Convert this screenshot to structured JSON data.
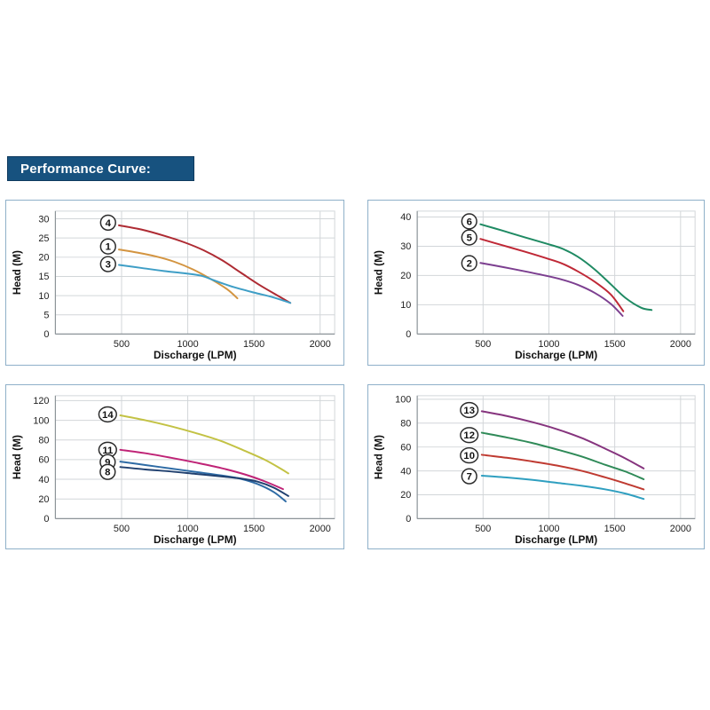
{
  "header": {
    "title": "Performance Curve:",
    "banner_color": "#17527f",
    "text_color": "#ffffff"
  },
  "page": {
    "background": "#ffffff",
    "panel_border_color": "#8fb0c9",
    "grid_color": "#d2d6d9",
    "axis_color": "#8d9499",
    "tick_text_color": "#1f1f1f",
    "label_circle_stroke": "#2a2a2a"
  },
  "chart_data": [
    {
      "id": "top-left",
      "type": "line",
      "title": "",
      "xlabel": "Discharge (LPM)",
      "ylabel": "Head (M)",
      "xlim": [
        0,
        2110
      ],
      "ylim": [
        0,
        32
      ],
      "xticks": [
        500,
        1000,
        1500,
        2000
      ],
      "yticks": [
        0,
        5,
        10,
        15,
        20,
        25,
        30
      ],
      "grid": true,
      "series": [
        {
          "name": "4",
          "color": "#ae2b33",
          "label_at": [
            398,
            29
          ],
          "points": [
            [
              480,
              28.3
            ],
            [
              650,
              27.2
            ],
            [
              820,
              25.6
            ],
            [
              980,
              23.8
            ],
            [
              1120,
              21.8
            ],
            [
              1260,
              19.2
            ],
            [
              1400,
              16
            ],
            [
              1550,
              12.6
            ],
            [
              1690,
              9.8
            ],
            [
              1775,
              8.1
            ]
          ]
        },
        {
          "name": "1",
          "color": "#d39440",
          "label_at": [
            398,
            22.8
          ],
          "points": [
            [
              480,
              22
            ],
            [
              620,
              21.2
            ],
            [
              760,
              20.2
            ],
            [
              900,
              18.8
            ],
            [
              1040,
              16.8
            ],
            [
              1180,
              14.2
            ],
            [
              1300,
              11.6
            ],
            [
              1375,
              9.3
            ]
          ]
        },
        {
          "name": "3",
          "color": "#3e9ec6",
          "label_at": [
            398,
            18.2
          ],
          "points": [
            [
              480,
              18
            ],
            [
              650,
              17.2
            ],
            [
              820,
              16.4
            ],
            [
              980,
              15.8
            ],
            [
              1100,
              15.2
            ],
            [
              1220,
              13.7
            ],
            [
              1350,
              12.2
            ],
            [
              1500,
              10.8
            ],
            [
              1640,
              9.6
            ],
            [
              1775,
              8.1
            ]
          ]
        }
      ]
    },
    {
      "id": "top-right",
      "type": "line",
      "title": "",
      "xlabel": "Discharge (LPM)",
      "ylabel": "Head (M)",
      "xlim": [
        0,
        2110
      ],
      "ylim": [
        0,
        42
      ],
      "xticks": [
        500,
        1000,
        1500,
        2000
      ],
      "yticks": [
        0,
        10,
        20,
        30,
        40
      ],
      "grid": true,
      "series": [
        {
          "name": "6",
          "color": "#1f8a63",
          "label_at": [
            395,
            38.5
          ],
          "points": [
            [
              480,
              37.5
            ],
            [
              650,
              35.3
            ],
            [
              820,
              33
            ],
            [
              980,
              30.9
            ],
            [
              1100,
              29.2
            ],
            [
              1220,
              26.4
            ],
            [
              1350,
              22
            ],
            [
              1470,
              17
            ],
            [
              1580,
              12.4
            ],
            [
              1700,
              9
            ],
            [
              1780,
              8.2
            ]
          ]
        },
        {
          "name": "5",
          "color": "#bf2836",
          "label_at": [
            395,
            33
          ],
          "points": [
            [
              480,
              32.5
            ],
            [
              650,
              30.3
            ],
            [
              820,
              28.1
            ],
            [
              980,
              25.9
            ],
            [
              1100,
              24.1
            ],
            [
              1220,
              21.4
            ],
            [
              1350,
              17.8
            ],
            [
              1470,
              13.5
            ],
            [
              1565,
              7.8
            ]
          ]
        },
        {
          "name": "2",
          "color": "#7c3f90",
          "label_at": [
            395,
            24.2
          ],
          "points": [
            [
              480,
              24.3
            ],
            [
              650,
              22.9
            ],
            [
              820,
              21.4
            ],
            [
              980,
              19.9
            ],
            [
              1100,
              18.6
            ],
            [
              1220,
              16.8
            ],
            [
              1350,
              14
            ],
            [
              1470,
              10.3
            ],
            [
              1560,
              6.2
            ]
          ]
        }
      ]
    },
    {
      "id": "bottom-left",
      "type": "line",
      "title": "",
      "xlabel": "Discharge (LPM)",
      "ylabel": "Head (M)",
      "xlim": [
        0,
        2110
      ],
      "ylim": [
        0,
        125
      ],
      "xticks": [
        500,
        1000,
        1500,
        2000
      ],
      "yticks": [
        0,
        20,
        40,
        60,
        80,
        100,
        120
      ],
      "grid": true,
      "series": [
        {
          "name": "14",
          "color": "#c3c244",
          "label_at": [
            395,
            106
          ],
          "points": [
            [
              490,
              105
            ],
            [
              680,
              100
            ],
            [
              870,
              94
            ],
            [
              1060,
              87
            ],
            [
              1250,
              79
            ],
            [
              1430,
              69
            ],
            [
              1580,
              60
            ],
            [
              1700,
              51
            ],
            [
              1760,
              46
            ]
          ]
        },
        {
          "name": "11",
          "color": "#bf2376",
          "label_at": [
            395,
            70
          ],
          "points": [
            [
              490,
              70
            ],
            [
              680,
              66.5
            ],
            [
              870,
              62
            ],
            [
              1060,
              57
            ],
            [
              1250,
              51.5
            ],
            [
              1430,
              45
            ],
            [
              1580,
              38
            ],
            [
              1720,
              30
            ]
          ]
        },
        {
          "name": "9",
          "color": "#2e6ba5",
          "label_at": [
            395,
            57.5
          ],
          "points": [
            [
              490,
              58
            ],
            [
              680,
              54.5
            ],
            [
              870,
              51
            ],
            [
              1060,
              47.5
            ],
            [
              1250,
              44
            ],
            [
              1400,
              40.5
            ],
            [
              1530,
              35
            ],
            [
              1650,
              27
            ],
            [
              1740,
              17.5
            ]
          ]
        },
        {
          "name": "8",
          "color": "#20406f",
          "label_at": [
            395,
            47.5
          ],
          "points": [
            [
              490,
              52.5
            ],
            [
              680,
              50
            ],
            [
              870,
              48
            ],
            [
              1060,
              45.5
            ],
            [
              1250,
              43
            ],
            [
              1400,
              40.8
            ],
            [
              1530,
              37.5
            ],
            [
              1650,
              31.5
            ],
            [
              1760,
              23
            ]
          ]
        }
      ]
    },
    {
      "id": "bottom-right",
      "type": "line",
      "title": "",
      "xlabel": "Discharge (LPM)",
      "ylabel": "Head (M)",
      "xlim": [
        0,
        2110
      ],
      "ylim": [
        0,
        103
      ],
      "xticks": [
        500,
        1000,
        1500,
        2000
      ],
      "yticks": [
        0,
        20,
        40,
        60,
        80,
        100
      ],
      "grid": true,
      "series": [
        {
          "name": "13",
          "color": "#86347e",
          "label_at": [
            395,
            91
          ],
          "points": [
            [
              490,
              90
            ],
            [
              680,
              86
            ],
            [
              870,
              81
            ],
            [
              1060,
              75
            ],
            [
              1250,
              67.5
            ],
            [
              1430,
              58.5
            ],
            [
              1580,
              50.5
            ],
            [
              1720,
              42
            ]
          ]
        },
        {
          "name": "12",
          "color": "#2f8a58",
          "label_at": [
            395,
            70
          ],
          "points": [
            [
              490,
              72
            ],
            [
              680,
              68
            ],
            [
              870,
              63.5
            ],
            [
              1060,
              58
            ],
            [
              1250,
              52
            ],
            [
              1430,
              45
            ],
            [
              1580,
              39.5
            ],
            [
              1720,
              33
            ]
          ]
        },
        {
          "name": "10",
          "color": "#bf3a31",
          "label_at": [
            395,
            53
          ],
          "points": [
            [
              490,
              53.5
            ],
            [
              680,
              51
            ],
            [
              870,
              48
            ],
            [
              1060,
              44.5
            ],
            [
              1250,
              40
            ],
            [
              1430,
              34.5
            ],
            [
              1580,
              29.5
            ],
            [
              1720,
              24.5
            ]
          ]
        },
        {
          "name": "7",
          "color": "#2f9fc0",
          "label_at": [
            395,
            35.5
          ],
          "points": [
            [
              490,
              36
            ],
            [
              680,
              34.5
            ],
            [
              870,
              32.5
            ],
            [
              1060,
              30
            ],
            [
              1250,
              27.5
            ],
            [
              1430,
              24.5
            ],
            [
              1580,
              21
            ],
            [
              1720,
              16.5
            ]
          ]
        }
      ]
    }
  ]
}
